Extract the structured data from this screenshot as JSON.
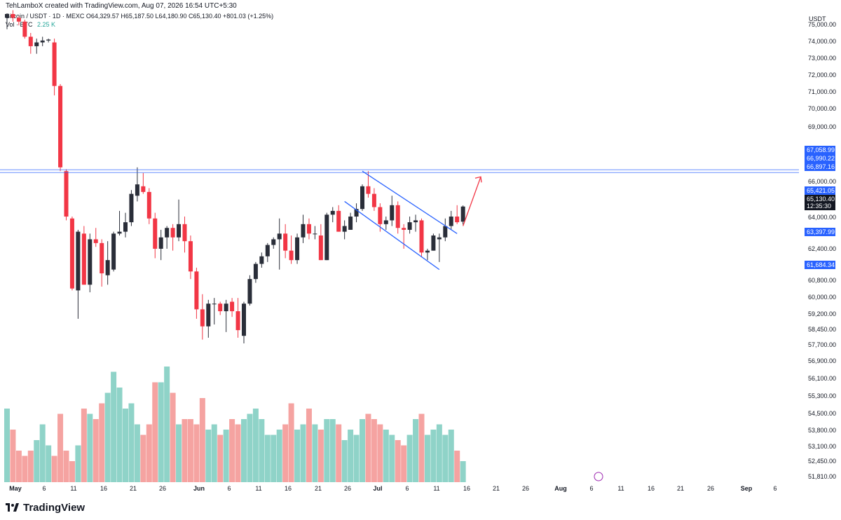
{
  "caption": "TehLamboX created with TradingView.com, Aug 07, 2026 16:54 UTC+5:30",
  "symbol": "Bitcoin / USDT · 1D · MEXC",
  "ohlc": "O64,329.57 H65,187.50 L64,180.90 C65,130.40 +801.03 (+1.25%)",
  "volume_label": "Vol · BTC",
  "volume_value": "2.25 K",
  "currency": "USDT",
  "brand": "TradingView",
  "colors": {
    "up": "#26a69a",
    "down": "#ef5350",
    "up_body": "#2a2e39",
    "down_body": "#f23645",
    "vol_up": "#8fd3c8",
    "vol_down": "#f5a3a1",
    "channel": "#2962ff",
    "resistance": "#2962ff",
    "arrow": "#f23645",
    "price_tag": "#2962ff",
    "last_tag": "#131722"
  },
  "price_axis_labels": [
    "75,000.00",
    "74,000.00",
    "73,000.00",
    "72,000.00",
    "71,000.00",
    "70,000.00",
    "69,000.00",
    "66,000.00",
    "64,000.00",
    "62,400.00",
    "60,800.00",
    "60,000.00",
    "59,200.00",
    "58,450.00",
    "57,700.00",
    "56,900.00",
    "56,100.00",
    "55,300.00",
    "54,500.00",
    "53,800.00",
    "53,100.00",
    "52,450.00",
    "51,810.00"
  ],
  "price_tags": [
    {
      "label": "67,058.99",
      "kind": "level"
    },
    {
      "label": "66,990.22",
      "kind": "level"
    },
    {
      "label": "66,897.16",
      "kind": "level"
    },
    {
      "label": "65,421.05",
      "kind": "level"
    },
    {
      "label": "65,130.40",
      "kind": "last"
    },
    {
      "label": "12:35:30",
      "kind": "timer"
    },
    {
      "label": "63,397.99",
      "kind": "level"
    },
    {
      "label": "61,684.34",
      "kind": "level"
    }
  ],
  "date_axis_labels": [
    "May",
    "6",
    "11",
    "16",
    "21",
    "26",
    "Jun",
    "6",
    "11",
    "16",
    "21",
    "26",
    "Jul",
    "6",
    "11",
    "16",
    "21",
    "26",
    "Aug",
    "6",
    "11",
    "16",
    "21",
    "26",
    "Sep",
    "6"
  ],
  "chart_data": {
    "type": "candlestick",
    "title": "Bitcoin / USDT · 1D · MEXC",
    "y_unit": "USDT",
    "resistance_level": 67000,
    "candles": [
      {
        "o": 75100,
        "h": 75300,
        "l": 74500,
        "c": 75300
      },
      {
        "o": 75300,
        "h": 75500,
        "l": 74900,
        "c": 75100
      },
      {
        "o": 75100,
        "h": 75200,
        "l": 74700,
        "c": 74900
      },
      {
        "o": 74900,
        "h": 75000,
        "l": 74000,
        "c": 74100
      },
      {
        "o": 74100,
        "h": 74300,
        "l": 73200,
        "c": 73600
      },
      {
        "o": 73600,
        "h": 74000,
        "l": 73200,
        "c": 73800
      },
      {
        "o": 73800,
        "h": 74100,
        "l": 73600,
        "c": 73900
      },
      {
        "o": 73900,
        "h": 74000,
        "l": 73800,
        "c": 73950
      },
      {
        "o": 73800,
        "h": 74000,
        "l": 71000,
        "c": 71500
      },
      {
        "o": 71500,
        "h": 71600,
        "l": 67000,
        "c": 67200
      },
      {
        "o": 67000,
        "h": 67100,
        "l": 64400,
        "c": 64600
      },
      {
        "o": 64500,
        "h": 64600,
        "l": 60700,
        "c": 60800
      },
      {
        "o": 60700,
        "h": 63900,
        "l": 59200,
        "c": 63800
      },
      {
        "o": 63700,
        "h": 64100,
        "l": 61000,
        "c": 61000
      },
      {
        "o": 61000,
        "h": 63700,
        "l": 60600,
        "c": 63400
      },
      {
        "o": 63400,
        "h": 64000,
        "l": 63000,
        "c": 63200
      },
      {
        "o": 63200,
        "h": 63400,
        "l": 60900,
        "c": 61600
      },
      {
        "o": 61500,
        "h": 63300,
        "l": 61000,
        "c": 62300
      },
      {
        "o": 61800,
        "h": 63800,
        "l": 61700,
        "c": 63700
      },
      {
        "o": 63700,
        "h": 64900,
        "l": 63600,
        "c": 63800
      },
      {
        "o": 63800,
        "h": 64800,
        "l": 63500,
        "c": 64300
      },
      {
        "o": 64300,
        "h": 66000,
        "l": 64100,
        "c": 65800
      },
      {
        "o": 65700,
        "h": 67200,
        "l": 65400,
        "c": 66300
      },
      {
        "o": 66200,
        "h": 66900,
        "l": 65800,
        "c": 65900
      },
      {
        "o": 65900,
        "h": 66100,
        "l": 64200,
        "c": 64500
      },
      {
        "o": 64500,
        "h": 64800,
        "l": 62400,
        "c": 62900
      },
      {
        "o": 62900,
        "h": 63900,
        "l": 62300,
        "c": 63500
      },
      {
        "o": 63500,
        "h": 64100,
        "l": 62900,
        "c": 64000
      },
      {
        "o": 64000,
        "h": 64200,
        "l": 62800,
        "c": 63500
      },
      {
        "o": 63500,
        "h": 65500,
        "l": 63300,
        "c": 64200
      },
      {
        "o": 64200,
        "h": 64600,
        "l": 62700,
        "c": 63300
      },
      {
        "o": 63300,
        "h": 63600,
        "l": 61300,
        "c": 61700
      },
      {
        "o": 61700,
        "h": 61900,
        "l": 59200,
        "c": 59700
      },
      {
        "o": 59700,
        "h": 60500,
        "l": 58100,
        "c": 58800
      },
      {
        "o": 58800,
        "h": 60200,
        "l": 58200,
        "c": 60000
      },
      {
        "o": 60000,
        "h": 60300,
        "l": 58900,
        "c": 60000
      },
      {
        "o": 60000,
        "h": 60100,
        "l": 59400,
        "c": 59600
      },
      {
        "o": 59600,
        "h": 60200,
        "l": 58500,
        "c": 60000
      },
      {
        "o": 60100,
        "h": 60300,
        "l": 59300,
        "c": 59600
      },
      {
        "o": 59600,
        "h": 60300,
        "l": 58200,
        "c": 58600
      },
      {
        "o": 58300,
        "h": 60100,
        "l": 57900,
        "c": 60000
      },
      {
        "o": 60000,
        "h": 61500,
        "l": 59900,
        "c": 61300
      },
      {
        "o": 61300,
        "h": 62200,
        "l": 61100,
        "c": 62100
      },
      {
        "o": 62100,
        "h": 62700,
        "l": 61900,
        "c": 62500
      },
      {
        "o": 62500,
        "h": 63200,
        "l": 62200,
        "c": 63100
      },
      {
        "o": 63100,
        "h": 63500,
        "l": 62900,
        "c": 63400
      },
      {
        "o": 63400,
        "h": 64500,
        "l": 61800,
        "c": 63700
      },
      {
        "o": 63700,
        "h": 64200,
        "l": 62400,
        "c": 62800
      },
      {
        "o": 62800,
        "h": 63600,
        "l": 62100,
        "c": 62300
      },
      {
        "o": 62300,
        "h": 63700,
        "l": 62100,
        "c": 63500
      },
      {
        "o": 63500,
        "h": 64700,
        "l": 63200,
        "c": 64200
      },
      {
        "o": 64200,
        "h": 64500,
        "l": 63400,
        "c": 63700
      },
      {
        "o": 63700,
        "h": 64100,
        "l": 63400,
        "c": 63700
      },
      {
        "o": 63600,
        "h": 64200,
        "l": 62300,
        "c": 62300
      },
      {
        "o": 62300,
        "h": 64800,
        "l": 62300,
        "c": 64700
      },
      {
        "o": 64700,
        "h": 65100,
        "l": 64300,
        "c": 64900
      },
      {
        "o": 64900,
        "h": 65200,
        "l": 63800,
        "c": 63800
      },
      {
        "o": 63800,
        "h": 64400,
        "l": 63400,
        "c": 64100
      },
      {
        "o": 63900,
        "h": 64800,
        "l": 63900,
        "c": 64600
      },
      {
        "o": 64600,
        "h": 65300,
        "l": 64300,
        "c": 65000
      },
      {
        "o": 65000,
        "h": 66300,
        "l": 64900,
        "c": 66200
      },
      {
        "o": 66200,
        "h": 67000,
        "l": 65600,
        "c": 65800
      },
      {
        "o": 65800,
        "h": 66100,
        "l": 64900,
        "c": 65100
      },
      {
        "o": 65100,
        "h": 65300,
        "l": 63800,
        "c": 64200
      },
      {
        "o": 64200,
        "h": 64600,
        "l": 63900,
        "c": 64400
      },
      {
        "o": 64400,
        "h": 65700,
        "l": 64100,
        "c": 65200
      },
      {
        "o": 65200,
        "h": 65400,
        "l": 63700,
        "c": 64000
      },
      {
        "o": 64000,
        "h": 64200,
        "l": 62900,
        "c": 63900
      },
      {
        "o": 63900,
        "h": 64600,
        "l": 63700,
        "c": 64300
      },
      {
        "o": 64300,
        "h": 64700,
        "l": 63800,
        "c": 64400
      },
      {
        "o": 64400,
        "h": 64500,
        "l": 62500,
        "c": 62700
      },
      {
        "o": 62700,
        "h": 62900,
        "l": 62300,
        "c": 62800
      },
      {
        "o": 62800,
        "h": 63700,
        "l": 62800,
        "c": 63600
      },
      {
        "o": 63400,
        "h": 63700,
        "l": 62200,
        "c": 63500
      },
      {
        "o": 63500,
        "h": 64500,
        "l": 63300,
        "c": 64100
      },
      {
        "o": 64100,
        "h": 64900,
        "l": 63900,
        "c": 64600
      },
      {
        "o": 64600,
        "h": 65200,
        "l": 64200,
        "c": 64300
      },
      {
        "o": 64329.57,
        "h": 65187.5,
        "l": 64180.9,
        "c": 65130.4
      }
    ],
    "volume_bars_scaled": [
      14,
      10,
      6,
      5,
      6,
      8,
      11,
      7,
      5,
      13,
      6,
      4,
      7,
      14,
      13,
      12,
      15,
      17,
      21,
      18,
      14,
      15,
      11,
      9,
      11,
      19,
      19,
      22,
      17,
      11,
      12,
      12,
      11,
      16,
      10,
      11,
      9,
      10,
      12,
      11,
      12,
      13,
      14,
      12,
      9,
      9,
      10,
      11,
      15,
      10,
      11,
      14,
      11,
      10,
      12,
      12,
      11,
      8,
      10,
      9,
      12,
      13,
      12,
      11,
      10,
      9,
      8,
      7,
      9,
      12,
      13,
      9,
      10,
      11,
      9,
      10,
      6,
      4
    ],
    "trendlines": [
      {
        "name": "upper channel",
        "from": {
          "index": 60,
          "price": 67000
        },
        "to": {
          "index": 76,
          "price": 63700
        }
      },
      {
        "name": "lower channel",
        "from": {
          "index": 57,
          "price": 65400
        },
        "to": {
          "index": 73,
          "price": 61800
        }
      }
    ],
    "projection_arrow": {
      "from": {
        "index": 77,
        "price": 64100
      },
      "to": {
        "index": 80,
        "price": 66700
      }
    }
  }
}
